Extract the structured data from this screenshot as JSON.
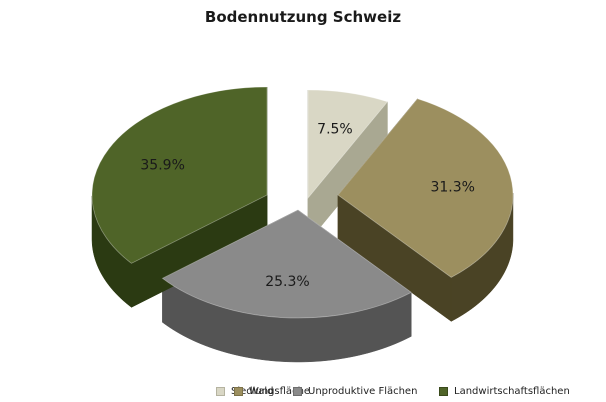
{
  "chart_data": {
    "type": "pie",
    "title": "Bodennutzung Schweiz",
    "slices": [
      {
        "label": "Siedlungsfläche",
        "value": 7.5,
        "value_label": "7.5%",
        "color": "#d9d7c5",
        "side_color": "#a9a892"
      },
      {
        "label": "Wald",
        "value": 31.3,
        "value_label": "31.3%",
        "color": "#9c8f5f",
        "side_color": "#4a4325"
      },
      {
        "label": "Unproduktive Flächen",
        "value": 25.3,
        "value_label": "25.3%",
        "color": "#8a8a8a",
        "side_color": "#545454"
      },
      {
        "label": "Landwirtschaftsflächen",
        "value": 35.9,
        "value_label": "35.9%",
        "color": "#4f6428",
        "side_color": "#2b3a12"
      }
    ],
    "exploded": true,
    "style": "3d",
    "legend_position": "bottom"
  }
}
